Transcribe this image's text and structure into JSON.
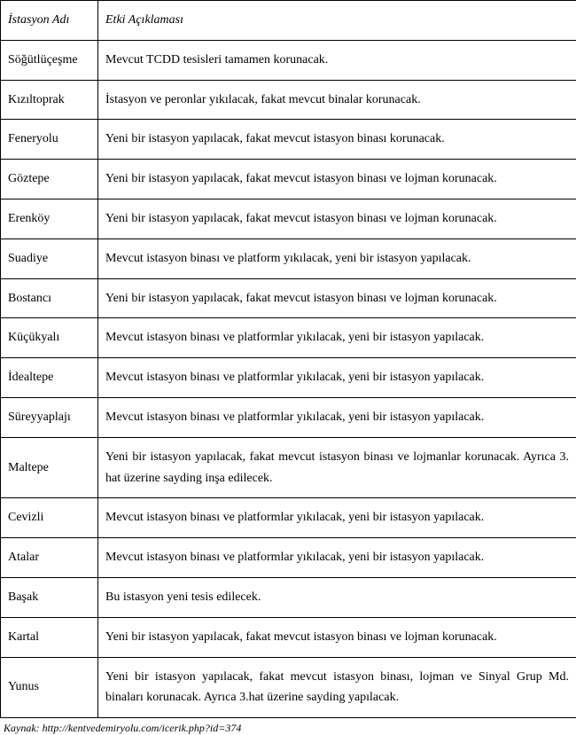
{
  "header": {
    "col1": "İstasyon Adı",
    "col2": "Etki Açıklaması"
  },
  "rows": [
    {
      "station": "Söğütlüçeşme",
      "desc": "Mevcut TCDD tesisleri tamamen korunacak."
    },
    {
      "station": "Kızıltoprak",
      "desc": "İstasyon ve peronlar yıkılacak, fakat mevcut binalar korunacak."
    },
    {
      "station": "Feneryolu",
      "desc": "Yeni bir istasyon yapılacak, fakat mevcut istasyon binası korunacak."
    },
    {
      "station": "Göztepe",
      "desc": "Yeni bir istasyon yapılacak, fakat mevcut istasyon binası ve lojman korunacak."
    },
    {
      "station": "Erenköy",
      "desc": "Yeni bir istasyon yapılacak, fakat mevcut istasyon binası ve lojman korunacak."
    },
    {
      "station": "Suadiye",
      "desc": "Mevcut istasyon binası ve platform yıkılacak, yeni bir istasyon yapılacak."
    },
    {
      "station": "Bostancı",
      "desc": "Yeni bir istasyon yapılacak, fakat mevcut istasyon binası ve lojman korunacak."
    },
    {
      "station": "Küçükyalı",
      "desc": "Mevcut istasyon binası ve platformlar yıkılacak, yeni bir istasyon yapılacak."
    },
    {
      "station": "İdealtepe",
      "desc": "Mevcut istasyon binası ve platformlar yıkılacak, yeni bir istasyon yapılacak."
    },
    {
      "station": "Süreyyaplajı",
      "desc": "Mevcut istasyon binası ve platformlar yıkılacak, yeni bir istasyon yapılacak."
    },
    {
      "station": "Maltepe",
      "desc": "Yeni bir istasyon yapılacak, fakat mevcut istasyon binası ve lojmanlar korunacak. Ayrıca 3. hat üzerine sayding inşa edilecek."
    },
    {
      "station": "Cevizli",
      "desc": "Mevcut istasyon binası ve platformlar yıkılacak, yeni bir istasyon yapılacak."
    },
    {
      "station": "Atalar",
      "desc": "Mevcut istasyon binası ve platformlar yıkılacak, yeni bir istasyon yapılacak."
    },
    {
      "station": "Başak",
      "desc": "Bu istasyon yeni tesis edilecek."
    },
    {
      "station": "Kartal",
      "desc": "Yeni bir istasyon yapılacak, fakat mevcut istasyon binası ve lojman korunacak."
    },
    {
      "station": "Yunus",
      "desc": "Yeni bir istasyon yapılacak, fakat mevcut istasyon binası, lojman ve Sinyal Grup Md. binaları korunacak. Ayrıca 3.hat üzerine sayding yapılacak."
    }
  ],
  "source": "Kaynak: http://kentvedemiryolu.com/icerik.php?id=374"
}
